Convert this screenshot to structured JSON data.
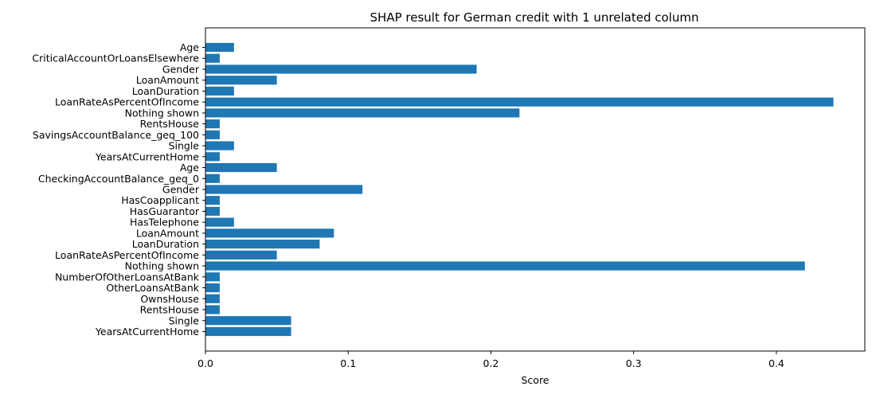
{
  "chart_data": {
    "type": "bar",
    "orientation": "horizontal",
    "title": "SHAP result for German credit with 1 unrelated column",
    "xlabel": "Score",
    "ylabel": "",
    "xlim": [
      0,
      0.462
    ],
    "xticks": [
      0.0,
      0.1,
      0.2,
      0.3,
      0.4
    ],
    "xtick_labels": [
      "0.0",
      "0.1",
      "0.2",
      "0.3",
      "0.4"
    ],
    "grid": false,
    "bar_color": "#1f77b4",
    "categories": [
      "Age",
      "CriticalAccountOrLoansElsewhere",
      "Gender",
      "LoanAmount",
      "LoanDuration",
      "LoanRateAsPercentOfIncome",
      "Nothing shown",
      "RentsHouse",
      "SavingsAccountBalance_geq_100",
      "Single",
      "YearsAtCurrentHome",
      "Age",
      "CheckingAccountBalance_geq_0",
      "Gender",
      "HasCoapplicant",
      "HasGuarantor",
      "HasTelephone",
      "LoanAmount",
      "LoanDuration",
      "LoanRateAsPercentOfIncome",
      "Nothing shown",
      "NumberOfOtherLoansAtBank",
      "OtherLoansAtBank",
      "OwnsHouse",
      "RentsHouse",
      "Single",
      "YearsAtCurrentHome"
    ],
    "values": [
      0.02,
      0.01,
      0.19,
      0.05,
      0.02,
      0.44,
      0.22,
      0.01,
      0.01,
      0.02,
      0.01,
      0.05,
      0.01,
      0.11,
      0.01,
      0.01,
      0.02,
      0.09,
      0.08,
      0.05,
      0.42,
      0.01,
      0.01,
      0.01,
      0.01,
      0.06,
      0.06
    ]
  }
}
